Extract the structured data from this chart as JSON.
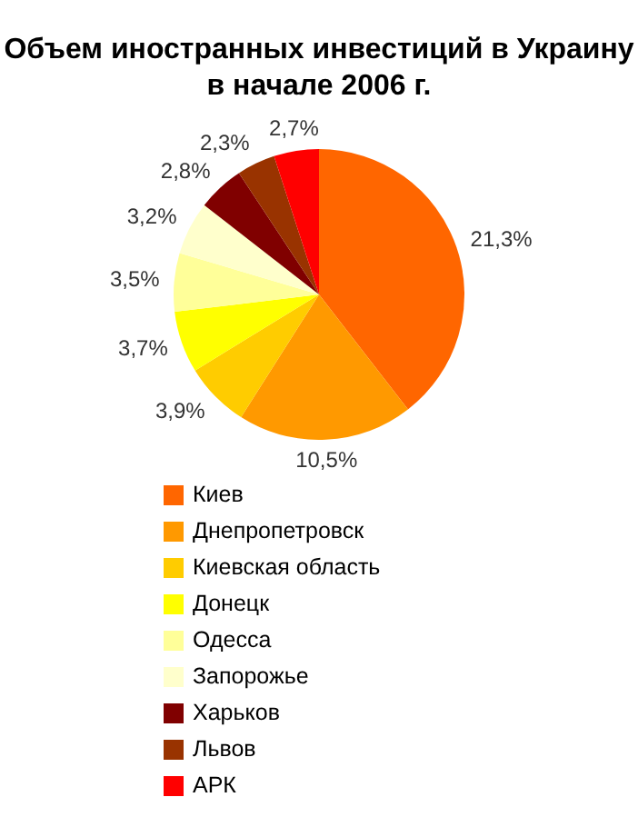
{
  "chart_data": {
    "type": "pie",
    "title": "Объем иностранных инвестиций в Украину в начале 2006 г.",
    "categories": [
      "Киев",
      "Днепропетровск",
      "Киевская область",
      "Донецк",
      "Одесса",
      "Запорожье",
      "Харьков",
      "Львов",
      "АРК"
    ],
    "values": [
      21.3,
      10.5,
      3.9,
      3.7,
      3.5,
      3.2,
      2.8,
      2.3,
      2.7
    ],
    "value_labels": [
      "21,3%",
      "10,5%",
      "3,9%",
      "3,7%",
      "3,5%",
      "3,2%",
      "2,8%",
      "2,3%",
      "2,7%"
    ],
    "colors": [
      "#ff6600",
      "#ff9900",
      "#ffcc00",
      "#ffff00",
      "#ffff99",
      "#ffffcc",
      "#800000",
      "#993300",
      "#ff0000"
    ],
    "legend": "bottom left"
  }
}
